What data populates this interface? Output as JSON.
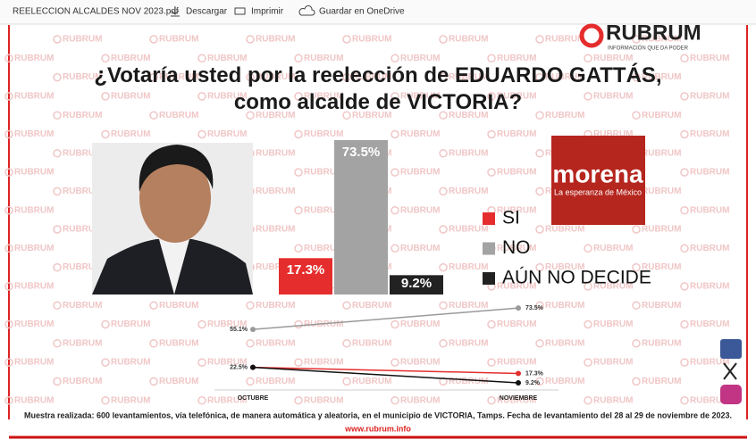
{
  "toolbar": {
    "file_name": "REELECCION ALCALDES NOV 2023.pdf",
    "actions": [
      "Descargar",
      "Imprimir",
      "Guardar en OneDrive"
    ]
  },
  "brand": {
    "name": "RUBRUM",
    "tagline": "INFORMACIÓN QUE DA PODER",
    "watermark": "RUBRUM",
    "website": "www.rubrum.info"
  },
  "party_logo": {
    "name": "morena",
    "slogan": "La esperanza de México"
  },
  "chart_data": [
    {
      "type": "bar",
      "title": "¿Votaría usted por la reelección de EDUARDO GATTÁS, como alcalde de VICTORIA?",
      "categories": [
        "SI",
        "NO",
        "AÚN NO DECIDE"
      ],
      "values": [
        17.3,
        73.5,
        9.2
      ],
      "value_labels": [
        "17.3%",
        "73.5%",
        "9.2%"
      ],
      "colors": [
        "#e52d2d",
        "#a3a3a3",
        "#222222"
      ]
    },
    {
      "type": "line",
      "categories": [
        "OCTUBRE",
        "NOVIEMBRE"
      ],
      "series": [
        {
          "color": "#9a9a9a",
          "values": [
            55.1,
            73.5
          ],
          "value_labels": [
            "55.1%",
            "73.5%"
          ]
        },
        {
          "color": "#e52d2d",
          "values": [
            22.5,
            17.3
          ],
          "value_labels": [
            "22.5%",
            "17.3%"
          ]
        },
        {
          "color": "#111111",
          "values": [
            22.5,
            9.2
          ],
          "value_labels": [
            null,
            "9.2%"
          ]
        }
      ]
    }
  ],
  "footnote": "Muestra realizada: 600 levantamientos, vía telefónica, de manera automática y aleatoria, en el municipio de VICTORIA, Tamps. Fecha de levantamiento del 28 al 29 de noviembre de 2023."
}
